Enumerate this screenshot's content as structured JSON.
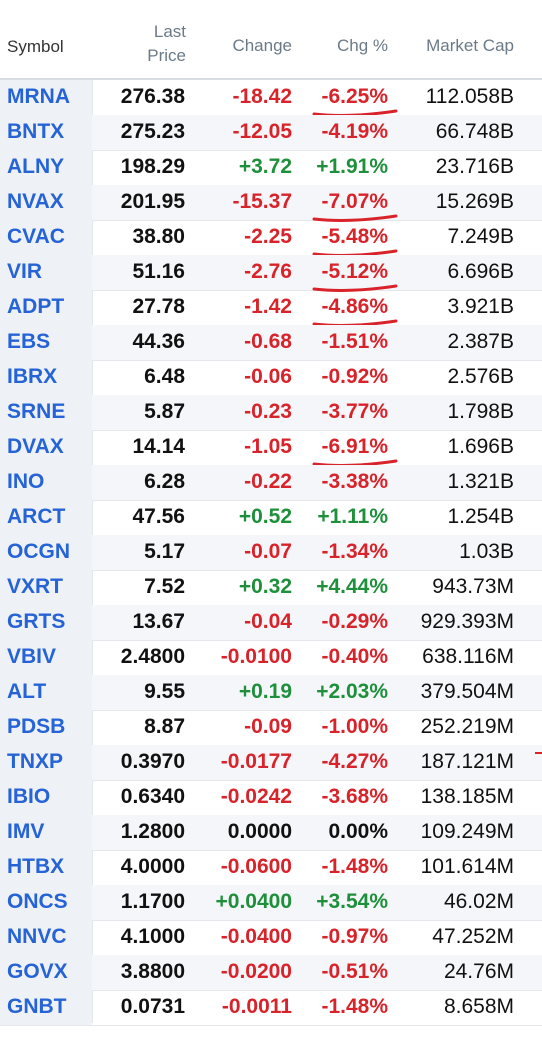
{
  "headers": {
    "symbol": "Symbol",
    "last_price_line1": "Last",
    "last_price_line2": "Price",
    "change": "Change",
    "chg_pct": "Chg %",
    "market_cap": "Market Cap"
  },
  "colors": {
    "positive": "#1e8f3a",
    "negative": "#d8232a",
    "symbol": "#2563d6",
    "annotation": "#d8232a"
  },
  "rows": [
    {
      "symbol": "MRNA",
      "price": "276.38",
      "change": "-18.42",
      "pct": "-6.25%",
      "cap": "112.058B",
      "dir": "neg",
      "underlined": true
    },
    {
      "symbol": "BNTX",
      "price": "275.23",
      "change": "-12.05",
      "pct": "-4.19%",
      "cap": "66.748B",
      "dir": "neg",
      "underlined": false
    },
    {
      "symbol": "ALNY",
      "price": "198.29",
      "change": "+3.72",
      "pct": "+1.91%",
      "cap": "23.716B",
      "dir": "pos",
      "underlined": false
    },
    {
      "symbol": "NVAX",
      "price": "201.95",
      "change": "-15.37",
      "pct": "-7.07%",
      "cap": "15.269B",
      "dir": "neg",
      "underlined": true
    },
    {
      "symbol": "CVAC",
      "price": "38.80",
      "change": "-2.25",
      "pct": "-5.48%",
      "cap": "7.249B",
      "dir": "neg",
      "underlined": true
    },
    {
      "symbol": "VIR",
      "price": "51.16",
      "change": "-2.76",
      "pct": "-5.12%",
      "cap": "6.696B",
      "dir": "neg",
      "underlined": true
    },
    {
      "symbol": "ADPT",
      "price": "27.78",
      "change": "-1.42",
      "pct": "-4.86%",
      "cap": "3.921B",
      "dir": "neg",
      "underlined": true
    },
    {
      "symbol": "EBS",
      "price": "44.36",
      "change": "-0.68",
      "pct": "-1.51%",
      "cap": "2.387B",
      "dir": "neg",
      "underlined": false
    },
    {
      "symbol": "IBRX",
      "price": "6.48",
      "change": "-0.06",
      "pct": "-0.92%",
      "cap": "2.576B",
      "dir": "neg",
      "underlined": false
    },
    {
      "symbol": "SRNE",
      "price": "5.87",
      "change": "-0.23",
      "pct": "-3.77%",
      "cap": "1.798B",
      "dir": "neg",
      "underlined": false
    },
    {
      "symbol": "DVAX",
      "price": "14.14",
      "change": "-1.05",
      "pct": "-6.91%",
      "cap": "1.696B",
      "dir": "neg",
      "underlined": true
    },
    {
      "symbol": "INO",
      "price": "6.28",
      "change": "-0.22",
      "pct": "-3.38%",
      "cap": "1.321B",
      "dir": "neg",
      "underlined": false
    },
    {
      "symbol": "ARCT",
      "price": "47.56",
      "change": "+0.52",
      "pct": "+1.11%",
      "cap": "1.254B",
      "dir": "pos",
      "underlined": false
    },
    {
      "symbol": "OCGN",
      "price": "5.17",
      "change": "-0.07",
      "pct": "-1.34%",
      "cap": "1.03B",
      "dir": "neg",
      "underlined": false
    },
    {
      "symbol": "VXRT",
      "price": "7.52",
      "change": "+0.32",
      "pct": "+4.44%",
      "cap": "943.73M",
      "dir": "pos",
      "underlined": false
    },
    {
      "symbol": "GRTS",
      "price": "13.67",
      "change": "-0.04",
      "pct": "-0.29%",
      "cap": "929.393M",
      "dir": "neg",
      "underlined": false
    },
    {
      "symbol": "VBIV",
      "price": "2.4800",
      "change": "-0.0100",
      "pct": "-0.40%",
      "cap": "638.116M",
      "dir": "neg",
      "underlined": false
    },
    {
      "symbol": "ALT",
      "price": "9.55",
      "change": "+0.19",
      "pct": "+2.03%",
      "cap": "379.504M",
      "dir": "pos",
      "underlined": false
    },
    {
      "symbol": "PDSB",
      "price": "8.87",
      "change": "-0.09",
      "pct": "-1.00%",
      "cap": "252.219M",
      "dir": "neg",
      "underlined": false
    },
    {
      "symbol": "TNXP",
      "price": "0.3970",
      "change": "-0.0177",
      "pct": "-4.27%",
      "cap": "187.121M",
      "dir": "neg",
      "underlined": false
    },
    {
      "symbol": "IBIO",
      "price": "0.6340",
      "change": "-0.0242",
      "pct": "-3.68%",
      "cap": "138.185M",
      "dir": "neg",
      "underlined": false
    },
    {
      "symbol": "IMV",
      "price": "1.2800",
      "change": "0.0000",
      "pct": "0.00%",
      "cap": "109.249M",
      "dir": "zero",
      "underlined": false
    },
    {
      "symbol": "HTBX",
      "price": "4.0000",
      "change": "-0.0600",
      "pct": "-1.48%",
      "cap": "101.614M",
      "dir": "neg",
      "underlined": false
    },
    {
      "symbol": "ONCS",
      "price": "1.1700",
      "change": "+0.0400",
      "pct": "+3.54%",
      "cap": "46.02M",
      "dir": "pos",
      "underlined": false
    },
    {
      "symbol": "NNVC",
      "price": "4.1000",
      "change": "-0.0400",
      "pct": "-0.97%",
      "cap": "47.252M",
      "dir": "neg",
      "underlined": false
    },
    {
      "symbol": "GOVX",
      "price": "3.8800",
      "change": "-0.0200",
      "pct": "-0.51%",
      "cap": "24.76M",
      "dir": "neg",
      "underlined": false
    },
    {
      "symbol": "GNBT",
      "price": "0.0731",
      "change": "-0.0011",
      "pct": "-1.48%",
      "cap": "8.658M",
      "dir": "neg",
      "underlined": false
    }
  ]
}
